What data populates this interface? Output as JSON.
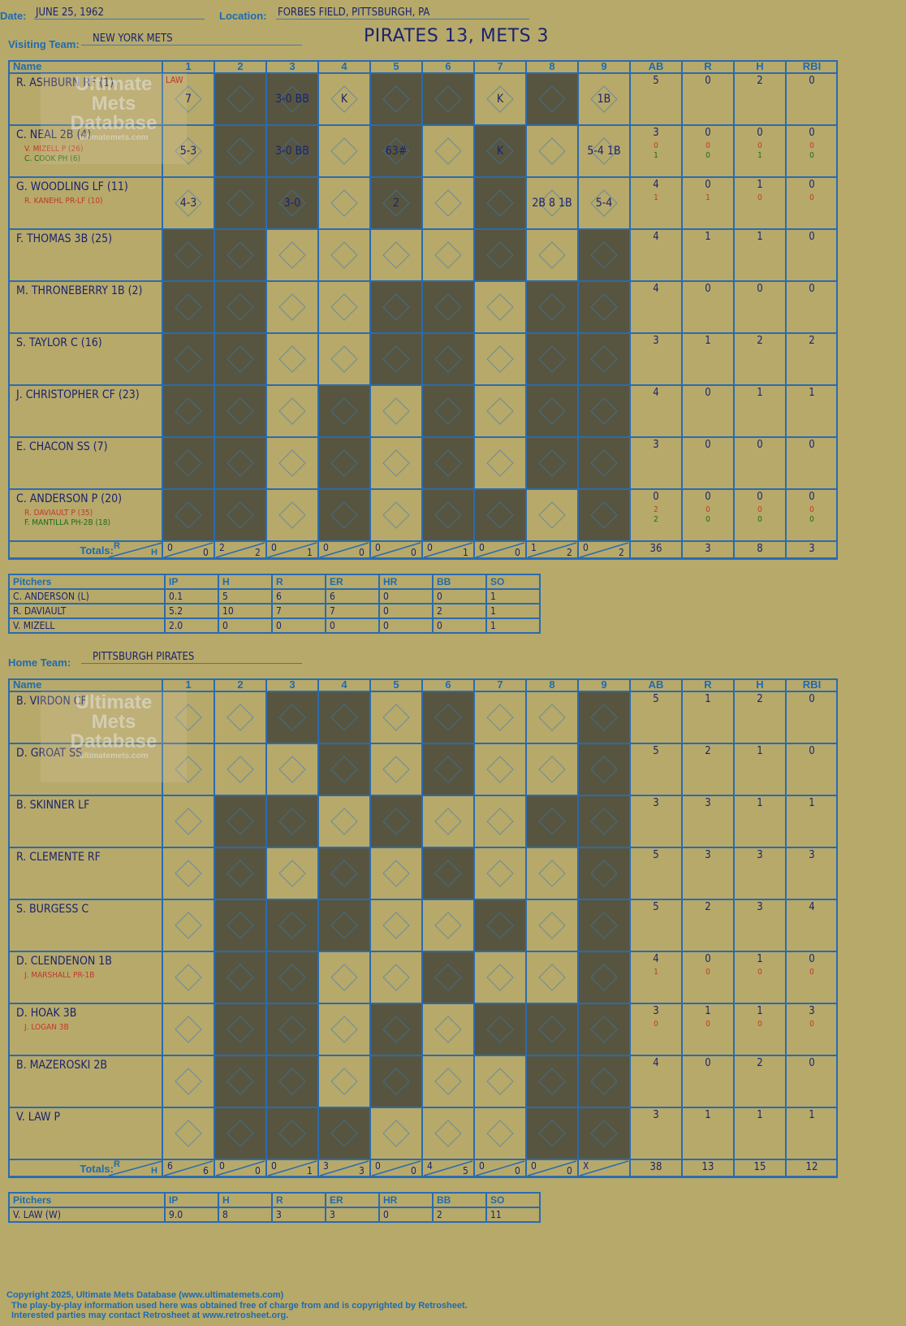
{
  "header": {
    "date_label": "Date:",
    "date": "JUNE 25, 1962",
    "location_label": "Location:",
    "location": "FORBES FIELD, PITTSBURGH, PA",
    "title": "PIRATES 13, METS 3"
  },
  "columns": {
    "name": "Name",
    "innings": [
      "1",
      "2",
      "3",
      "4",
      "5",
      "6",
      "7",
      "8",
      "9"
    ],
    "stats": [
      "AB",
      "R",
      "H",
      "RBI"
    ],
    "totals": "Totals:",
    "r": "R",
    "h": "H"
  },
  "watermark": {
    "line1": "Ultimate",
    "line2": "Mets",
    "line3": "Database",
    "url": "ultimatemets.com"
  },
  "visiting": {
    "label": "Visiting Team:",
    "team": "NEW YORK METS",
    "players": [
      {
        "name": "R. ASHBURN RF (1)",
        "subs": [],
        "ab": "5",
        "r": "0",
        "h": "2",
        "rbi": "0",
        "sub_stats": []
      },
      {
        "name": "C. NEAL 2B (4)",
        "subs": [
          {
            "name": "V. MIZELL P (26)",
            "color": "red"
          },
          {
            "name": "C. COOK PH (6)",
            "color": "green"
          }
        ],
        "ab": "3",
        "r": "0",
        "h": "0",
        "rbi": "0",
        "sub_stats": [
          {
            "ab": "0",
            "r": "0",
            "h": "0",
            "rbi": "0",
            "color": "red"
          },
          {
            "ab": "1",
            "r": "0",
            "h": "1",
            "rbi": "0",
            "color": "green"
          }
        ]
      },
      {
        "name": "G. WOODLING LF (11)",
        "subs": [
          {
            "name": "R. KANEHL PR-LF (10)",
            "color": "red"
          }
        ],
        "ab": "4",
        "r": "0",
        "h": "1",
        "rbi": "0",
        "sub_stats": [
          {
            "ab": "1",
            "r": "1",
            "h": "0",
            "rbi": "0",
            "color": "red"
          }
        ]
      },
      {
        "name": "F. THOMAS 3B (25)",
        "subs": [],
        "ab": "4",
        "r": "1",
        "h": "1",
        "rbi": "0",
        "sub_stats": []
      },
      {
        "name": "M. THRONEBERRY 1B (2)",
        "subs": [],
        "ab": "4",
        "r": "0",
        "h": "0",
        "rbi": "0",
        "sub_stats": []
      },
      {
        "name": "S. TAYLOR C (16)",
        "subs": [],
        "ab": "3",
        "r": "1",
        "h": "2",
        "rbi": "2",
        "sub_stats": []
      },
      {
        "name": "J. CHRISTOPHER CF (23)",
        "subs": [],
        "ab": "4",
        "r": "0",
        "h": "1",
        "rbi": "1",
        "sub_stats": []
      },
      {
        "name": "E. CHACON SS (7)",
        "subs": [],
        "ab": "3",
        "r": "0",
        "h": "0",
        "rbi": "0",
        "sub_stats": []
      },
      {
        "name": "C. ANDERSON P (20)",
        "subs": [
          {
            "name": "R. DAVIAULT P (35)",
            "color": "red"
          },
          {
            "name": "F. MANTILLA PH-2B (18)",
            "color": "green"
          }
        ],
        "ab": "0",
        "r": "0",
        "h": "0",
        "rbi": "0",
        "sub_stats": [
          {
            "ab": "2",
            "r": "0",
            "h": "0",
            "rbi": "0",
            "color": "red"
          },
          {
            "ab": "2",
            "r": "0",
            "h": "0",
            "rbi": "0",
            "color": "green"
          }
        ]
      }
    ],
    "totals": [
      [
        "0",
        "0"
      ],
      [
        "2",
        "2"
      ],
      [
        "0",
        "1"
      ],
      [
        "0",
        "0"
      ],
      [
        "0",
        "0"
      ],
      [
        "0",
        "1"
      ],
      [
        "0",
        "0"
      ],
      [
        "1",
        "2"
      ],
      [
        "0",
        "2"
      ]
    ],
    "total_stats": {
      "ab": "36",
      "r": "3",
      "h": "8",
      "rbi": "3"
    },
    "pitchers_label": "Pitchers",
    "pitcher_cols": [
      "IP",
      "H",
      "R",
      "ER",
      "HR",
      "BB",
      "SO"
    ],
    "pitchers": [
      {
        "name": "C. ANDERSON (L)",
        "ip": "0.1",
        "h": "5",
        "r": "6",
        "er": "6",
        "hr": "0",
        "bb": "0",
        "so": "1"
      },
      {
        "name": "R. DAVIAULT",
        "ip": "5.2",
        "h": "10",
        "r": "7",
        "er": "7",
        "hr": "0",
        "bb": "2",
        "so": "1"
      },
      {
        "name": "V. MIZELL",
        "ip": "2.0",
        "h": "0",
        "r": "0",
        "er": "0",
        "hr": "0",
        "bb": "0",
        "so": "1"
      }
    ],
    "plays": [
      {
        "inn": 1,
        "text": "7",
        "note": "LAW"
      },
      {
        "inn": 3,
        "text": "3-0 BB"
      },
      {
        "inn": 4,
        "text": "K"
      },
      {
        "inn": 7,
        "text": "K"
      },
      {
        "inn": 9,
        "text": "1B"
      },
      {
        "inn": 1,
        "text": "5-3"
      },
      {
        "inn": 3,
        "text": "3-0 BB"
      },
      {
        "inn": 5,
        "text": "63#"
      },
      {
        "inn": 7,
        "text": "K"
      },
      {
        "inn": 9,
        "text": "5-4 1B"
      },
      {
        "inn": 1,
        "text": "4-3"
      },
      {
        "inn": 3,
        "text": "3-0"
      },
      {
        "inn": 5,
        "text": "2"
      },
      {
        "inn": 8,
        "text": "2B 8 1B"
      },
      {
        "inn": 9,
        "text": "5-4"
      }
    ]
  },
  "home": {
    "label": "Home Team:",
    "team": "PITTSBURGH PIRATES",
    "players": [
      {
        "name": "B. VIRDON CF",
        "subs": [],
        "ab": "5",
        "r": "1",
        "h": "2",
        "rbi": "0",
        "sub_stats": []
      },
      {
        "name": "D. GROAT SS",
        "subs": [],
        "ab": "5",
        "r": "2",
        "h": "1",
        "rbi": "0",
        "sub_stats": []
      },
      {
        "name": "B. SKINNER LF",
        "subs": [],
        "ab": "3",
        "r": "3",
        "h": "1",
        "rbi": "1",
        "sub_stats": []
      },
      {
        "name": "R. CLEMENTE RF",
        "subs": [],
        "ab": "5",
        "r": "3",
        "h": "3",
        "rbi": "3",
        "sub_stats": []
      },
      {
        "name": "S. BURGESS C",
        "subs": [],
        "ab": "5",
        "r": "2",
        "h": "3",
        "rbi": "4",
        "sub_stats": []
      },
      {
        "name": "D. CLENDENON 1B",
        "subs": [
          {
            "name": "J. MARSHALL PR-1B",
            "color": "red"
          }
        ],
        "ab": "4",
        "r": "0",
        "h": "1",
        "rbi": "0",
        "sub_stats": [
          {
            "ab": "1",
            "r": "0",
            "h": "0",
            "rbi": "0",
            "color": "red"
          }
        ]
      },
      {
        "name": "D. HOAK 3B",
        "subs": [
          {
            "name": "J. LOGAN 3B",
            "color": "red"
          }
        ],
        "ab": "3",
        "r": "1",
        "h": "1",
        "rbi": "3",
        "sub_stats": [
          {
            "ab": "0",
            "r": "0",
            "h": "0",
            "rbi": "0",
            "color": "red"
          }
        ]
      },
      {
        "name": "B. MAZEROSKI 2B",
        "subs": [],
        "ab": "4",
        "r": "0",
        "h": "2",
        "rbi": "0",
        "sub_stats": []
      },
      {
        "name": "V. LAW P",
        "subs": [],
        "ab": "3",
        "r": "1",
        "h": "1",
        "rbi": "1",
        "sub_stats": []
      }
    ],
    "totals": [
      [
        "6",
        "6"
      ],
      [
        "0",
        "0"
      ],
      [
        "0",
        "1"
      ],
      [
        "3",
        "3"
      ],
      [
        "0",
        "0"
      ],
      [
        "4",
        "5"
      ],
      [
        "0",
        "0"
      ],
      [
        "0",
        "0"
      ],
      [
        "X",
        ""
      ]
    ],
    "total_stats": {
      "ab": "38",
      "r": "13",
      "h": "15",
      "rbi": "12"
    },
    "pitchers_label": "Pitchers",
    "pitcher_cols": [
      "IP",
      "H",
      "R",
      "ER",
      "HR",
      "BB",
      "SO"
    ],
    "pitchers": [
      {
        "name": "V. LAW (W)",
        "ip": "9.0",
        "h": "8",
        "r": "3",
        "er": "3",
        "hr": "0",
        "bb": "2",
        "so": "11"
      }
    ]
  },
  "footer": {
    "copyright": "Copyright 2025, Ultimate Mets Database (www.ultimatemets.com)",
    "line2": "The play-by-play information used here was obtained free of charge from and is copyrighted by Retrosheet.",
    "line3": "Interested parties may contact Retrosheet at www.retrosheet.org."
  },
  "colors": {
    "background": "#b7a96a",
    "grid": "#2a6bb0",
    "shade": "#57553f",
    "ink": "#1a2470",
    "diamond": "#1f2a7a",
    "red": "#c0392b",
    "green": "#1e6b1e"
  }
}
